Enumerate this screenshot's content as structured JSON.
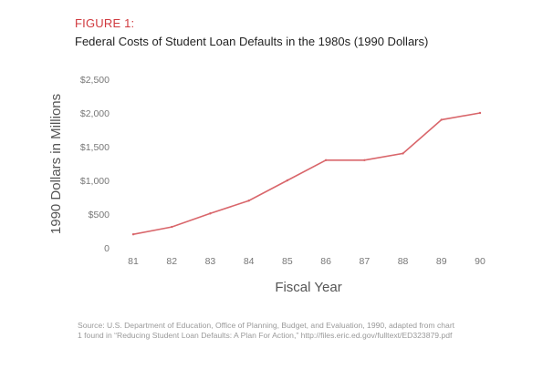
{
  "figure": {
    "label": "FIGURE 1:",
    "title": "Federal Costs of Student Loan Defaults in the 1980s (1990 Dollars)",
    "source": "Source: U.S. Department of Education, Office of Planning, Budget, and Evaluation, 1990, adapted from chart 1 found in “Reducing Student Loan Defaults: A Plan For Action,” http://files.eric.ed.gov/fulltext/ED323879.pdf"
  },
  "colors": {
    "line": "#d9666b",
    "label_accent": "#d0393e",
    "axis_text": "#777777",
    "title_text": "#222222"
  },
  "chart_data": {
    "type": "line",
    "title": "Federal Costs of Student Loan Defaults in the 1980s (1990 Dollars)",
    "xlabel": "Fiscal Year",
    "ylabel": "1990 Dollars in Millions",
    "x": [
      "81",
      "82",
      "83",
      "84",
      "85",
      "86",
      "87",
      "88",
      "89",
      "90"
    ],
    "y": [
      200,
      310,
      510,
      700,
      1000,
      1300,
      1300,
      1400,
      1900,
      2000
    ],
    "ylim": [
      0,
      2500
    ],
    "yticks": [
      0,
      500,
      1000,
      1500,
      2000,
      2500
    ],
    "ytick_labels": [
      "0",
      "$500",
      "$1,000",
      "$1,500",
      "$2,000",
      "$2,500"
    ],
    "grid": false,
    "legend": "none"
  }
}
